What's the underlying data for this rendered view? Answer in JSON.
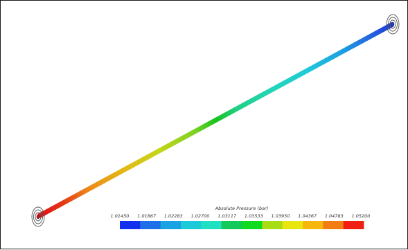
{
  "legend": {
    "title": "Absolute Pressure (bar)",
    "ticks": [
      "1.01450",
      "1.01867",
      "1.02283",
      "1.02700",
      "1.03117",
      "1.03533",
      "1.03950",
      "1.04367",
      "1.04783",
      "1.05200"
    ],
    "colors": [
      "#1230ee",
      "#1f6fe8",
      "#1aa3e3",
      "#1ccad8",
      "#1fe0c2",
      "#12c95a",
      "#0fdc1e",
      "#a8dd14",
      "#e9e60f",
      "#f6b70a",
      "#f27d12",
      "#ef1f12"
    ]
  },
  "pipe": {
    "inlet_color": "#e01018",
    "outlet_color": "#1e3ad8"
  }
}
